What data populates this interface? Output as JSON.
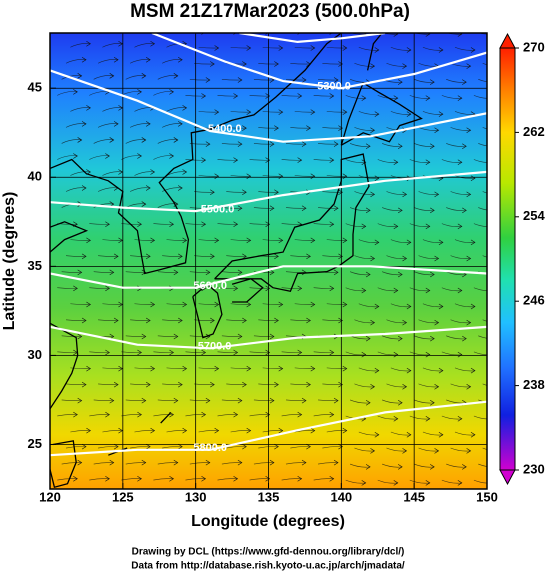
{
  "chart_data": {
    "type": "contour_map",
    "title": "MSM 21Z17Mar2023 (500.0hPa)",
    "xlabel": "Longitude (degrees)",
    "ylabel": "Latitude  (degrees)",
    "xlim": [
      120,
      150
    ],
    "ylim": [
      22.5,
      48.1
    ],
    "xticks": [
      120,
      125,
      130,
      135,
      140,
      145,
      150
    ],
    "yticks": [
      25,
      30,
      35,
      40,
      45
    ],
    "grid": true,
    "contours": [
      {
        "value": 5300,
        "label": "5300.0"
      },
      {
        "value": 5400,
        "label": "5400.0"
      },
      {
        "value": 5500,
        "label": "5500.0"
      },
      {
        "value": 5600,
        "label": "5600.0"
      },
      {
        "value": 5700,
        "label": "5700.0"
      },
      {
        "value": 5800,
        "label": "5800.0"
      }
    ],
    "colorbar": {
      "lim": [
        230,
        270
      ],
      "ticks": [
        230,
        238,
        246,
        254,
        262,
        270
      ]
    },
    "credits": [
      "Drawing by DCL (https://www.gfd-dennou.org/library/dcl/)",
      "Data from http://database.rish.kyoto-u.ac.jp/arch/jmadata/"
    ]
  }
}
